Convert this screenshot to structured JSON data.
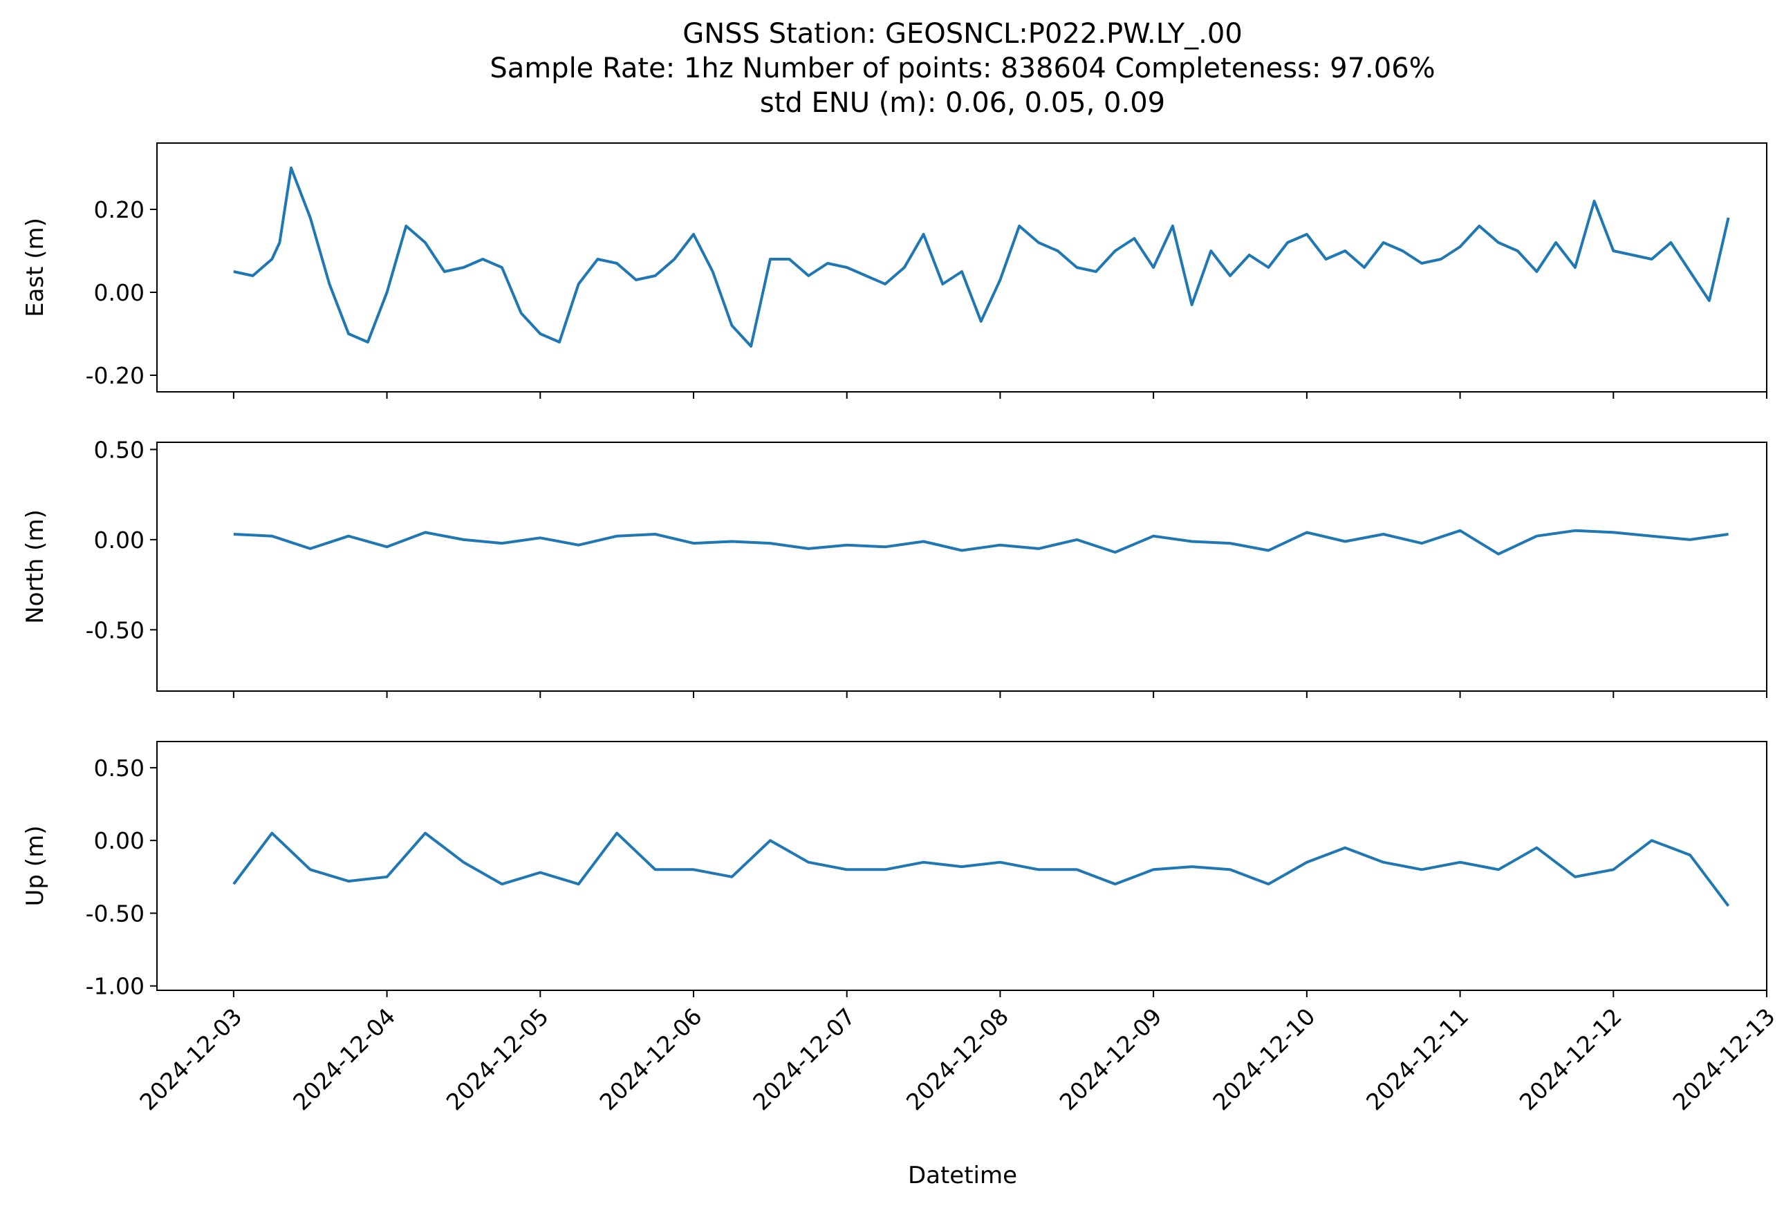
{
  "figure": {
    "title_lines": [
      "GNSS Station: GEOSNCL:P022.PW.LY_.00",
      "Sample Rate: 1hz   Number of points: 838604    Completeness:  97.06%",
      "std ENU (m):  0.06, 0.05, 0.09"
    ],
    "xlabel": "Datetime",
    "line_color": "#1f77b4"
  },
  "chart_data": [
    {
      "type": "line",
      "panel": "east",
      "ylabel": "East (m)",
      "xlim": [
        "2024-12-02T12:00",
        "2024-12-13T00:00"
      ],
      "ylim": [
        -0.24,
        0.36
      ],
      "yticks": [
        -0.2,
        0.0,
        0.2
      ],
      "ytick_labels": [
        "-0.20",
        "0.00",
        "0.20"
      ],
      "grid": false,
      "series": [
        {
          "x": [
            "2024-12-03T00:00",
            "2024-12-03T03:00",
            "2024-12-03T06:00",
            "2024-12-03T07:12",
            "2024-12-03T09:00",
            "2024-12-03T12:00",
            "2024-12-03T15:00",
            "2024-12-03T18:00",
            "2024-12-03T21:00",
            "2024-12-04T00:00",
            "2024-12-04T03:00",
            "2024-12-04T06:00",
            "2024-12-04T09:00",
            "2024-12-04T12:00",
            "2024-12-04T15:00",
            "2024-12-04T18:00",
            "2024-12-04T21:00",
            "2024-12-05T00:00",
            "2024-12-05T03:00",
            "2024-12-05T06:00",
            "2024-12-05T09:00",
            "2024-12-05T12:00",
            "2024-12-05T15:00",
            "2024-12-05T18:00",
            "2024-12-05T21:00",
            "2024-12-06T00:00",
            "2024-12-06T03:00",
            "2024-12-06T06:00",
            "2024-12-06T09:00",
            "2024-12-06T12:00",
            "2024-12-06T15:00",
            "2024-12-06T18:00",
            "2024-12-06T21:00",
            "2024-12-07T00:00",
            "2024-12-07T03:00",
            "2024-12-07T06:00",
            "2024-12-07T09:00",
            "2024-12-07T12:00",
            "2024-12-07T15:00",
            "2024-12-07T18:00",
            "2024-12-07T21:00",
            "2024-12-08T00:00",
            "2024-12-08T03:00",
            "2024-12-08T06:00",
            "2024-12-08T09:00",
            "2024-12-08T12:00",
            "2024-12-08T15:00",
            "2024-12-08T18:00",
            "2024-12-08T21:00",
            "2024-12-09T00:00",
            "2024-12-09T03:00",
            "2024-12-09T06:00",
            "2024-12-09T09:00",
            "2024-12-09T12:00",
            "2024-12-09T15:00",
            "2024-12-09T18:00",
            "2024-12-09T21:00",
            "2024-12-10T00:00",
            "2024-12-10T03:00",
            "2024-12-10T06:00",
            "2024-12-10T09:00",
            "2024-12-10T12:00",
            "2024-12-10T15:00",
            "2024-12-10T18:00",
            "2024-12-10T21:00",
            "2024-12-11T00:00",
            "2024-12-11T03:00",
            "2024-12-11T06:00",
            "2024-12-11T09:00",
            "2024-12-11T12:00",
            "2024-12-11T15:00",
            "2024-12-11T18:00",
            "2024-12-11T21:00",
            "2024-12-12T00:00",
            "2024-12-12T03:00",
            "2024-12-12T06:00",
            "2024-12-12T09:00",
            "2024-12-12T12:00",
            "2024-12-12T15:00",
            "2024-12-12T18:00"
          ],
          "y": [
            0.05,
            0.04,
            0.08,
            0.12,
            0.3,
            0.18,
            0.02,
            -0.1,
            -0.12,
            0.0,
            0.16,
            0.12,
            0.05,
            0.06,
            0.08,
            0.06,
            -0.05,
            -0.1,
            -0.12,
            0.02,
            0.08,
            0.07,
            0.03,
            0.04,
            0.08,
            0.14,
            0.05,
            -0.08,
            -0.13,
            0.08,
            0.08,
            0.04,
            0.07,
            0.06,
            0.04,
            0.02,
            0.06,
            0.14,
            0.02,
            0.05,
            -0.07,
            0.03,
            0.16,
            0.12,
            0.1,
            0.06,
            0.05,
            0.1,
            0.13,
            0.06,
            0.16,
            -0.03,
            0.1,
            0.04,
            0.09,
            0.06,
            0.12,
            0.14,
            0.08,
            0.1,
            0.06,
            0.12,
            0.1,
            0.07,
            0.08,
            0.11,
            0.16,
            0.12,
            0.1,
            0.05,
            0.12,
            0.06,
            0.22,
            0.1,
            0.09,
            0.08,
            0.12,
            0.05,
            -0.02,
            0.18
          ]
        }
      ]
    },
    {
      "type": "line",
      "panel": "north",
      "ylabel": "North (m)",
      "xlim": [
        "2024-12-02T12:00",
        "2024-12-13T00:00"
      ],
      "ylim": [
        -0.84,
        0.54
      ],
      "yticks": [
        -0.5,
        0.0,
        0.5
      ],
      "ytick_labels": [
        "-0.50",
        "0.00",
        "0.50"
      ],
      "grid": false,
      "series": [
        {
          "x": [
            "2024-12-03T00:00",
            "2024-12-03T06:00",
            "2024-12-03T12:00",
            "2024-12-03T18:00",
            "2024-12-04T00:00",
            "2024-12-04T06:00",
            "2024-12-04T12:00",
            "2024-12-04T18:00",
            "2024-12-05T00:00",
            "2024-12-05T06:00",
            "2024-12-05T12:00",
            "2024-12-05T18:00",
            "2024-12-06T00:00",
            "2024-12-06T06:00",
            "2024-12-06T12:00",
            "2024-12-06T18:00",
            "2024-12-07T00:00",
            "2024-12-07T06:00",
            "2024-12-07T12:00",
            "2024-12-07T18:00",
            "2024-12-08T00:00",
            "2024-12-08T06:00",
            "2024-12-08T12:00",
            "2024-12-08T18:00",
            "2024-12-09T00:00",
            "2024-12-09T06:00",
            "2024-12-09T12:00",
            "2024-12-09T18:00",
            "2024-12-10T00:00",
            "2024-12-10T06:00",
            "2024-12-10T12:00",
            "2024-12-10T18:00",
            "2024-12-11T00:00",
            "2024-12-11T06:00",
            "2024-12-11T12:00",
            "2024-12-11T18:00",
            "2024-12-12T00:00",
            "2024-12-12T06:00",
            "2024-12-12T12:00",
            "2024-12-12T18:00"
          ],
          "y": [
            0.03,
            0.02,
            -0.05,
            0.02,
            -0.04,
            0.04,
            0.0,
            -0.02,
            0.01,
            -0.03,
            0.02,
            0.03,
            -0.02,
            -0.01,
            -0.02,
            -0.05,
            -0.03,
            -0.04,
            -0.01,
            -0.06,
            -0.03,
            -0.05,
            0.0,
            -0.07,
            0.02,
            -0.01,
            -0.02,
            -0.06,
            0.04,
            -0.01,
            0.03,
            -0.02,
            0.05,
            -0.08,
            0.02,
            0.05,
            0.04,
            0.02,
            0.0,
            0.03
          ]
        }
      ]
    },
    {
      "type": "line",
      "panel": "up",
      "ylabel": "Up (m)",
      "xlim": [
        "2024-12-02T12:00",
        "2024-12-13T00:00"
      ],
      "ylim": [
        -1.03,
        0.68
      ],
      "yticks": [
        -1.0,
        -0.5,
        0.0,
        0.5
      ],
      "ytick_labels": [
        "-1.00",
        "-0.50",
        "0.00",
        "0.50"
      ],
      "grid": false,
      "series": [
        {
          "x": [
            "2024-12-03T00:00",
            "2024-12-03T06:00",
            "2024-12-03T12:00",
            "2024-12-03T18:00",
            "2024-12-04T00:00",
            "2024-12-04T06:00",
            "2024-12-04T12:00",
            "2024-12-04T18:00",
            "2024-12-05T00:00",
            "2024-12-05T06:00",
            "2024-12-05T12:00",
            "2024-12-05T18:00",
            "2024-12-06T00:00",
            "2024-12-06T06:00",
            "2024-12-06T12:00",
            "2024-12-06T18:00",
            "2024-12-07T00:00",
            "2024-12-07T06:00",
            "2024-12-07T12:00",
            "2024-12-07T18:00",
            "2024-12-08T00:00",
            "2024-12-08T06:00",
            "2024-12-08T12:00",
            "2024-12-08T18:00",
            "2024-12-09T00:00",
            "2024-12-09T06:00",
            "2024-12-09T12:00",
            "2024-12-09T18:00",
            "2024-12-10T00:00",
            "2024-12-10T06:00",
            "2024-12-10T12:00",
            "2024-12-10T18:00",
            "2024-12-11T00:00",
            "2024-12-11T06:00",
            "2024-12-11T12:00",
            "2024-12-11T18:00",
            "2024-12-12T00:00",
            "2024-12-12T06:00",
            "2024-12-12T12:00",
            "2024-12-12T18:00"
          ],
          "y": [
            -0.3,
            0.05,
            -0.2,
            -0.28,
            -0.25,
            0.05,
            -0.15,
            -0.3,
            -0.22,
            -0.3,
            0.05,
            -0.2,
            -0.2,
            -0.25,
            0.0,
            -0.15,
            -0.2,
            -0.2,
            -0.15,
            -0.18,
            -0.15,
            -0.2,
            -0.2,
            -0.3,
            -0.2,
            -0.18,
            -0.2,
            -0.3,
            -0.15,
            -0.05,
            -0.15,
            -0.2,
            -0.15,
            -0.2,
            -0.05,
            -0.25,
            -0.2,
            0.0,
            -0.1,
            -0.45
          ]
        }
      ]
    }
  ],
  "x_axis": {
    "tick_labels": [
      "2024-12-03",
      "2024-12-04",
      "2024-12-05",
      "2024-12-06",
      "2024-12-07",
      "2024-12-08",
      "2024-12-09",
      "2024-12-10",
      "2024-12-11",
      "2024-12-12",
      "2024-12-13"
    ]
  }
}
